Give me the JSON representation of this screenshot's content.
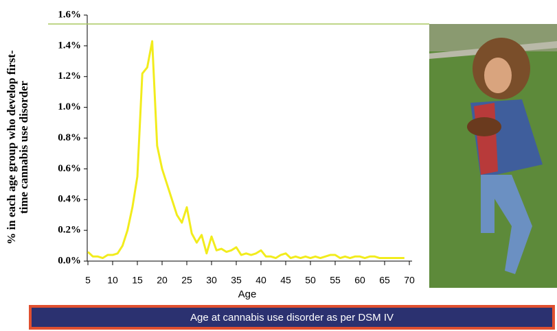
{
  "chart_data": {
    "type": "line",
    "ylabel": [
      "% in each age group who develop first-",
      "time cannabis use disorder"
    ],
    "xlabel": "Age",
    "caption": "Age at cannabis use disorder as per DSM IV",
    "x": [
      5,
      6,
      7,
      8,
      9,
      10,
      11,
      12,
      13,
      14,
      15,
      16,
      17,
      18,
      19,
      20,
      21,
      22,
      23,
      24,
      25,
      26,
      27,
      28,
      29,
      30,
      31,
      32,
      33,
      34,
      35,
      36,
      37,
      38,
      39,
      40,
      41,
      42,
      43,
      44,
      45,
      46,
      47,
      48,
      49,
      50,
      51,
      52,
      53,
      54,
      55,
      56,
      57,
      58,
      59,
      60,
      61,
      62,
      63,
      64,
      65,
      66,
      67,
      68,
      69
    ],
    "series": [
      {
        "color": "#f2ec1c",
        "values": [
          0.06,
          0.03,
          0.03,
          0.02,
          0.04,
          0.04,
          0.05,
          0.1,
          0.2,
          0.35,
          0.55,
          1.22,
          1.26,
          1.43,
          0.75,
          0.6,
          0.5,
          0.4,
          0.3,
          0.25,
          0.35,
          0.18,
          0.12,
          0.17,
          0.05,
          0.16,
          0.07,
          0.08,
          0.06,
          0.07,
          0.09,
          0.04,
          0.05,
          0.04,
          0.05,
          0.07,
          0.03,
          0.03,
          0.02,
          0.04,
          0.05,
          0.02,
          0.03,
          0.02,
          0.03,
          0.02,
          0.03,
          0.02,
          0.03,
          0.04,
          0.04,
          0.02,
          0.03,
          0.02,
          0.03,
          0.03,
          0.02,
          0.03,
          0.03,
          0.02,
          0.02,
          0.02,
          0.02,
          0.02,
          0.02
        ]
      }
    ],
    "xlim": [
      5,
      70
    ],
    "xticks": [
      5,
      10,
      15,
      20,
      25,
      30,
      35,
      40,
      45,
      50,
      55,
      60,
      65,
      70
    ],
    "ylim": [
      0,
      1.6
    ],
    "yticks": [
      {
        "value": 0,
        "label": "0.0%"
      },
      {
        "value": 0.2,
        "label": "0.2%"
      },
      {
        "value": 0.4,
        "label": "0.4%"
      },
      {
        "value": 0.6,
        "label": "0.6%"
      },
      {
        "value": 0.8,
        "label": "0.8%"
      },
      {
        "value": 1.0,
        "label": "1.0%"
      },
      {
        "value": 1.2,
        "label": "1.2%"
      },
      {
        "value": 1.4,
        "label": "1.4%"
      },
      {
        "value": 1.6,
        "label": "1.6%"
      }
    ]
  }
}
